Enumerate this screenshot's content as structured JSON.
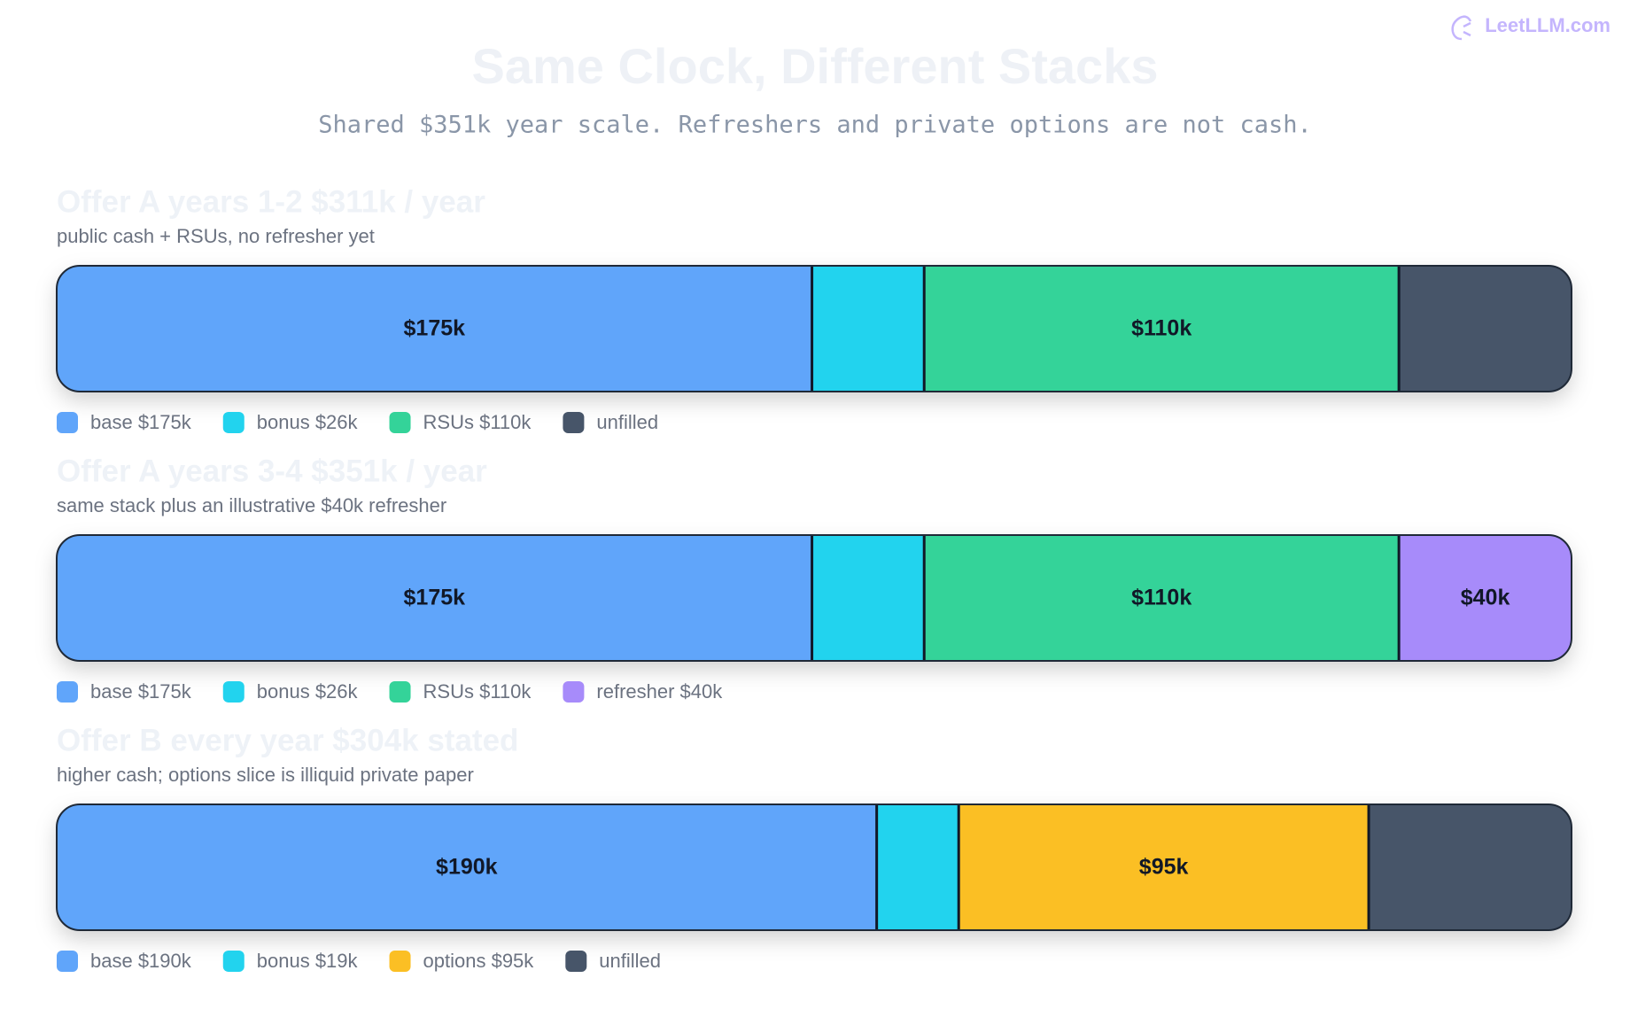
{
  "title": "Same Clock, Different Stacks",
  "subtitle": "Shared $351k year scale. Refreshers and private options are not cash.",
  "watermark": "LeetLLM.com",
  "chart_data": [
    {
      "type": "bar",
      "orientation": "horizontal",
      "stacked": true,
      "title": "Offer A years 1-2 $311k / year",
      "subtitle": "public cash + RSUs, no refresher yet",
      "xlim": [
        0,
        351
      ],
      "series": [
        {
          "name": "base $175k",
          "color": "#60a5fa",
          "values": [
            175
          ],
          "value_labels": [
            "$175k"
          ]
        },
        {
          "name": "bonus $26k",
          "color": "#22d3ee",
          "values": [
            26
          ]
        },
        {
          "name": "RSUs $110k",
          "color": "#34d399",
          "values": [
            110
          ],
          "value_labels": [
            "$110k"
          ]
        },
        {
          "name": "unfilled",
          "color": "#475569",
          "values": [
            40
          ]
        }
      ]
    },
    {
      "type": "bar",
      "orientation": "horizontal",
      "stacked": true,
      "title": "Offer A years 3-4 $351k / year",
      "subtitle": "same stack plus an illustrative $40k refresher",
      "xlim": [
        0,
        351
      ],
      "series": [
        {
          "name": "base $175k",
          "color": "#60a5fa",
          "values": [
            175
          ],
          "value_labels": [
            "$175k"
          ]
        },
        {
          "name": "bonus $26k",
          "color": "#22d3ee",
          "values": [
            26
          ]
        },
        {
          "name": "RSUs $110k",
          "color": "#34d399",
          "values": [
            110
          ],
          "value_labels": [
            "$110k"
          ]
        },
        {
          "name": "refresher $40k",
          "color": "#a78bfa",
          "values": [
            40
          ],
          "value_labels": [
            "$40k"
          ]
        }
      ]
    },
    {
      "type": "bar",
      "orientation": "horizontal",
      "stacked": true,
      "title": "Offer B every year $304k stated",
      "subtitle": "higher cash; options slice is illiquid private paper",
      "xlim": [
        0,
        351
      ],
      "series": [
        {
          "name": "base $190k",
          "color": "#60a5fa",
          "values": [
            190
          ],
          "value_labels": [
            "$190k"
          ]
        },
        {
          "name": "bonus $19k",
          "color": "#22d3ee",
          "values": [
            19
          ]
        },
        {
          "name": "options $95k",
          "color": "#fbbf24",
          "values": [
            95
          ],
          "value_labels": [
            "$95k"
          ]
        },
        {
          "name": "unfilled",
          "color": "#475569",
          "values": [
            47
          ]
        }
      ]
    }
  ]
}
